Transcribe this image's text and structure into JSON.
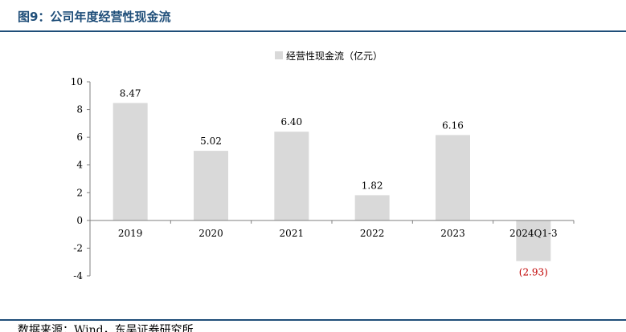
{
  "figure": {
    "title": "图9：公司年度经营性现金流",
    "source": "数据来源：Wind，东吴证券研究所"
  },
  "colors": {
    "bar": "#d9d9d9",
    "axis": "#808080",
    "negative_label": "#c00000",
    "header": "#1f4e79"
  },
  "chart_data": {
    "type": "bar",
    "title": "",
    "xlabel": "",
    "ylabel": "",
    "categories": [
      "2019",
      "2020",
      "2021",
      "2022",
      "2023",
      "2024Q1-3"
    ],
    "series": [
      {
        "name": "经营性现金流（亿元）",
        "values": [
          8.47,
          5.02,
          6.4,
          1.82,
          6.16,
          -2.93
        ],
        "labels": [
          "8.47",
          "5.02",
          "6.40",
          "1.82",
          "6.16",
          "(2.93)"
        ]
      }
    ],
    "ylim": [
      -4,
      10
    ],
    "yticks": [
      -4,
      -2,
      0,
      2,
      4,
      6,
      8,
      10
    ],
    "grid": false,
    "legend": "top-center"
  }
}
